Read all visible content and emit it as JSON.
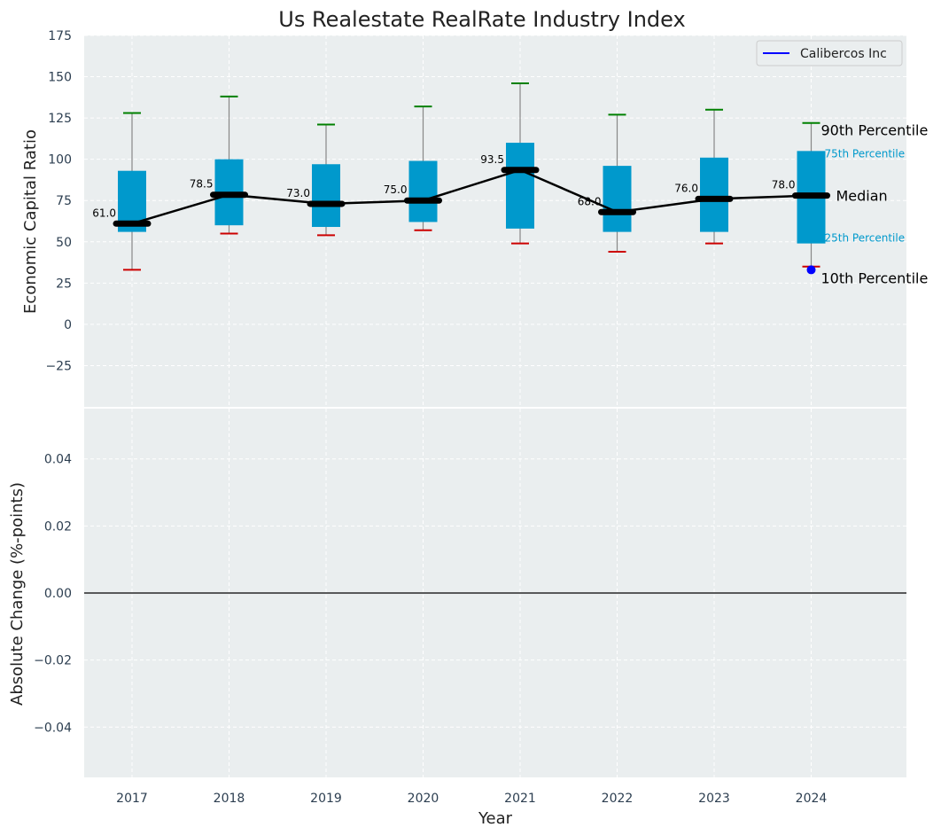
{
  "chart_data": [
    {
      "type": "box",
      "title": "Us Realestate RealRate Industry Index",
      "ylabel": "Economic Capital Ratio",
      "xlabel": "",
      "ylim": [
        -50,
        175
      ],
      "yticks": [
        -25,
        0,
        25,
        50,
        75,
        100,
        125,
        150,
        175
      ],
      "grid": true,
      "categories": [
        "2017",
        "2018",
        "2019",
        "2020",
        "2021",
        "2022",
        "2023",
        "2024"
      ],
      "p10": [
        33,
        55,
        54,
        57,
        49,
        44,
        49,
        35
      ],
      "p25": [
        56,
        60,
        59,
        62,
        58,
        56,
        56,
        49
      ],
      "median": [
        61.0,
        78.5,
        73.0,
        75.0,
        93.5,
        68.0,
        76.0,
        78.0
      ],
      "p75": [
        93,
        100,
        97,
        99,
        110,
        96,
        101,
        105
      ],
      "p90": [
        128,
        138,
        121,
        132,
        146,
        127,
        130,
        122
      ],
      "median_labels": [
        "61.0",
        "78.5",
        "73.0",
        "75.0",
        "93.5",
        "68.0",
        "76.0",
        "78.0"
      ],
      "company": {
        "name": "Calibercos Inc",
        "year": "2024",
        "value": 33,
        "color": "#0000ff"
      },
      "legend": {
        "position": "top-right",
        "entries": [
          "Calibercos Inc"
        ]
      },
      "annotations": {
        "p90": "90th Percentile",
        "p75": "75th Percentile",
        "median": "Median",
        "p25": "25th Percentile",
        "p10": "10th Percentile"
      },
      "colors": {
        "box": "#0099cc",
        "median_line": "#000000",
        "p90_cap": "#008000",
        "p10_cap": "#cc0000",
        "whisker": "#888888",
        "background": "#eaeeef"
      }
    },
    {
      "type": "line",
      "xlabel": "Year",
      "ylabel": "Absolute Change (%-points)",
      "ylim": [
        -0.055,
        0.055
      ],
      "yticks": [
        -0.04,
        -0.02,
        0.0,
        0.02,
        0.04
      ],
      "ytick_labels": [
        "−0.04",
        "−0.02",
        "0.00",
        "0.02",
        "0.04"
      ],
      "categories": [
        "2017",
        "2018",
        "2019",
        "2020",
        "2021",
        "2022",
        "2023",
        "2024"
      ],
      "grid": true,
      "reference_line": 0
    }
  ]
}
